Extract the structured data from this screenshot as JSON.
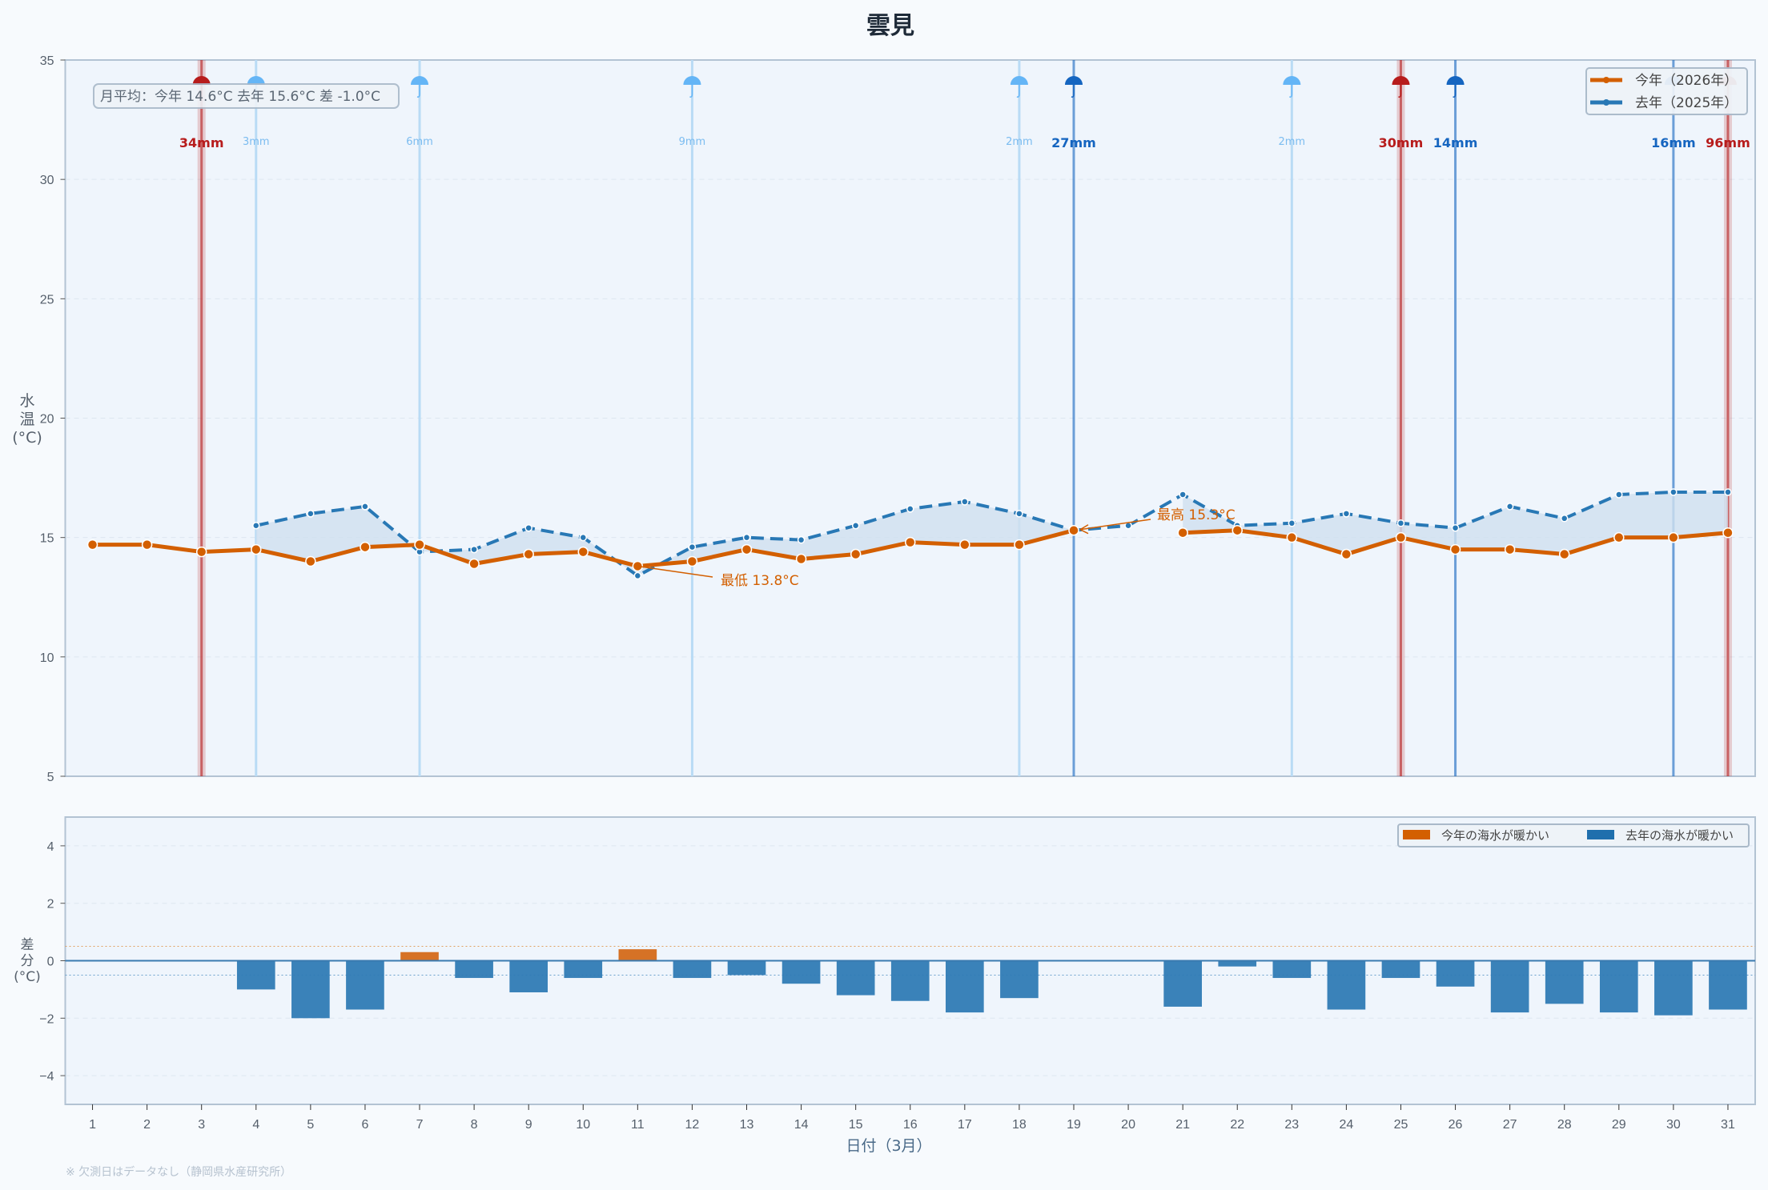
{
  "title": "雲見",
  "colors": {
    "this_year": "#d35f00",
    "last_year": "#2878b5",
    "fill": "#cfe0ef",
    "rain_light": "#b9dbf5",
    "rain_mid": "#1565c0",
    "rain_heavy": "#b71c1c",
    "plot_bg": "#eff5fc"
  },
  "summary_box": "月平均：今年 14.6°C  去年 15.6°C  差 -1.0°C",
  "annotations": {
    "min_label": "最低 13.8°C",
    "max_label": "最高 15.3°C"
  },
  "footnote": "※ 欠測日はデータなし（静岡県水産研究所）",
  "chart_data": [
    {
      "type": "line",
      "ylabel": "水温(°C)",
      "ylim": [
        5,
        35
      ],
      "yticks": [
        5,
        10,
        15,
        20,
        25,
        30,
        35
      ],
      "x": [
        1,
        2,
        3,
        4,
        5,
        6,
        7,
        8,
        9,
        10,
        11,
        12,
        13,
        14,
        15,
        16,
        17,
        18,
        19,
        20,
        21,
        22,
        23,
        24,
        25,
        26,
        27,
        28,
        29,
        30,
        31
      ],
      "grid": true,
      "legend": "top-right",
      "series": [
        {
          "name": "今年（2026年）",
          "values": [
            14.7,
            14.7,
            14.4,
            14.5,
            14.0,
            14.6,
            14.7,
            13.9,
            14.3,
            14.4,
            13.8,
            14.0,
            14.5,
            14.1,
            14.3,
            14.8,
            14.7,
            14.7,
            15.3,
            null,
            15.2,
            15.3,
            15.0,
            14.3,
            15.0,
            14.5,
            14.5,
            14.3,
            15.0,
            15.0,
            15.2
          ]
        },
        {
          "name": "去年（2025年）",
          "values": [
            null,
            null,
            null,
            15.5,
            16.0,
            16.3,
            14.4,
            14.5,
            15.4,
            15.0,
            13.4,
            14.6,
            15.0,
            14.9,
            15.5,
            16.2,
            16.5,
            16.0,
            15.3,
            15.5,
            16.8,
            15.5,
            15.6,
            16.0,
            15.6,
            15.4,
            16.3,
            15.8,
            16.8,
            16.9,
            16.9
          ]
        }
      ],
      "rain": [
        {
          "day": 3,
          "label": "34mm",
          "level": "heavy"
        },
        {
          "day": 4,
          "label": "3mm",
          "level": "light"
        },
        {
          "day": 7,
          "label": "6mm",
          "level": "light"
        },
        {
          "day": 12,
          "label": "9mm",
          "level": "light"
        },
        {
          "day": 18,
          "label": "2mm",
          "level": "light"
        },
        {
          "day": 19,
          "label": "27mm",
          "level": "mid"
        },
        {
          "day": 23,
          "label": "2mm",
          "level": "light"
        },
        {
          "day": 25,
          "label": "30mm",
          "level": "heavy"
        },
        {
          "day": 26,
          "label": "14mm",
          "level": "mid"
        },
        {
          "day": 30,
          "label": "16mm",
          "level": "mid"
        },
        {
          "day": 31,
          "label": "96mm",
          "level": "heavy"
        }
      ]
    },
    {
      "type": "bar",
      "xlabel": "日付（3月）",
      "ylabel": "差分(°C)",
      "ylim": [
        -5,
        5
      ],
      "yticks": [
        4,
        2,
        0,
        -2,
        -4
      ],
      "ytick_labels": [
        "4",
        "2",
        "0",
        "−2",
        "−4"
      ],
      "categories": [
        1,
        2,
        3,
        4,
        5,
        6,
        7,
        8,
        9,
        10,
        11,
        12,
        13,
        14,
        15,
        16,
        17,
        18,
        19,
        20,
        21,
        22,
        23,
        24,
        25,
        26,
        27,
        28,
        29,
        30,
        31
      ],
      "values": [
        null,
        null,
        null,
        -1.0,
        -2.0,
        -1.7,
        0.3,
        -0.6,
        -1.1,
        -0.6,
        0.4,
        -0.6,
        -0.5,
        -0.8,
        -1.2,
        -1.4,
        -1.8,
        -1.3,
        0.0,
        null,
        -1.6,
        -0.2,
        -0.6,
        -1.7,
        -0.6,
        -0.9,
        -1.8,
        -1.5,
        -1.8,
        -1.9,
        -1.7
      ],
      "legend": "top-right",
      "legend_entries": [
        {
          "name": "今年の海水が暖かい",
          "color": "#d35f00"
        },
        {
          "name": "去年の海水が暖かい",
          "color": "#1f6fad"
        }
      ]
    }
  ]
}
